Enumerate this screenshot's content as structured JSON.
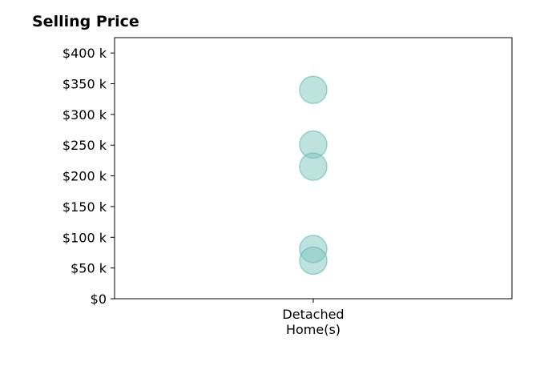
{
  "chart_data": {
    "type": "scatter",
    "title": "Selling Price",
    "categories": [
      "Detached\nHome(s)"
    ],
    "series": [
      {
        "values": [
          340000,
          251000,
          215000,
          81000,
          62000
        ]
      }
    ],
    "ylim": [
      0,
      425000
    ],
    "yticks": [
      0,
      50000,
      100000,
      150000,
      200000,
      250000,
      300000,
      350000,
      400000
    ],
    "ytick_labels": [
      "$0",
      "$50 k",
      "$100 k",
      "$150 k",
      "$200 k",
      "$250 k",
      "$300 k",
      "$350 k",
      "$400 k"
    ],
    "grid": false,
    "colors": {
      "marker": "#7ec8c0",
      "marker_edge": "#5bb3a9"
    }
  }
}
